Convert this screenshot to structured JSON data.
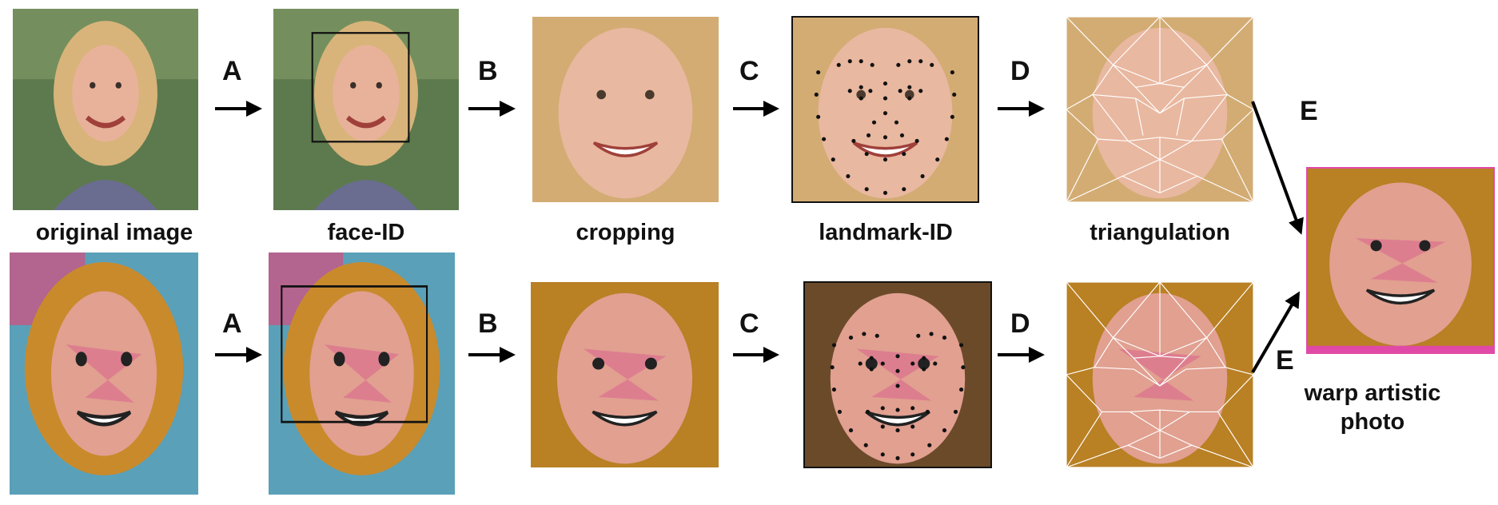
{
  "labels": {
    "original": "original image",
    "face_id": "face-ID",
    "cropping": "cropping",
    "landmark": "landmark-ID",
    "triangulation": "triangulation",
    "warp_line1": "warp artistic",
    "warp_line2": "photo"
  },
  "steps": {
    "a": "A",
    "b": "B",
    "c": "C",
    "d": "D",
    "e": "E"
  },
  "colors": {
    "photo_bg": "#6f8a5a",
    "skin": "#e8b29a",
    "hair": "#d9b47a",
    "shirt": "#6c6f93",
    "art_accent": "#e04aa6",
    "arrow": "#000000",
    "mesh": "#ffffff"
  }
}
